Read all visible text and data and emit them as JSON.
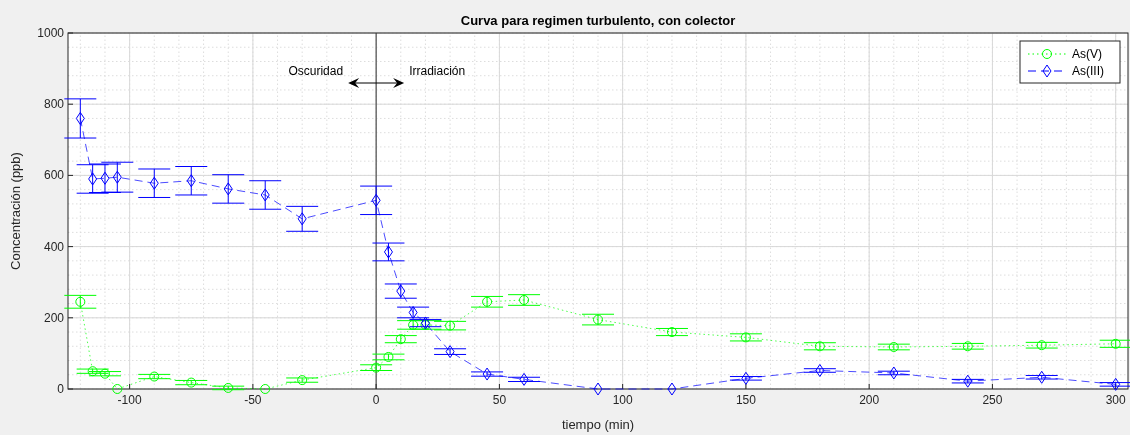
{
  "chart_data": {
    "type": "line",
    "title": "Curva para regimen turbulento, con colector",
    "xlabel": "tiempo (min)",
    "ylabel": "Concentración (ppb)",
    "x": [
      -120,
      -115,
      -110,
      -105,
      -90,
      -75,
      -60,
      -45,
      -30,
      0,
      5,
      10,
      15,
      20,
      30,
      45,
      60,
      90,
      120,
      150,
      180,
      210,
      240,
      270,
      300
    ],
    "series": [
      {
        "name": "As(V)",
        "color": "#00ff00",
        "marker": "circle",
        "line_style": "dotted",
        "values": [
          245,
          50,
          43,
          0,
          35,
          18,
          3,
          0,
          25,
          60,
          90,
          140,
          180,
          180,
          178,
          245,
          250,
          195,
          160,
          145,
          120,
          118,
          120,
          123,
          127
        ],
        "errors": [
          18,
          6,
          6,
          null,
          6,
          6,
          5,
          null,
          6,
          8,
          8,
          10,
          12,
          12,
          12,
          15,
          15,
          15,
          10,
          10,
          10,
          8,
          8,
          8,
          10
        ]
      },
      {
        "name": "As(III)",
        "color": "#0000ff",
        "marker": "diamond",
        "line_style": "dashed",
        "values": [
          760,
          590,
          592,
          595,
          578,
          585,
          562,
          545,
          478,
          530,
          385,
          275,
          215,
          185,
          105,
          42,
          27,
          0,
          0,
          30,
          52,
          45,
          22,
          33,
          13
        ],
        "errors": [
          55,
          40,
          40,
          42,
          40,
          40,
          40,
          40,
          35,
          40,
          25,
          20,
          15,
          10,
          8,
          6,
          6,
          null,
          null,
          5,
          5,
          5,
          5,
          5,
          5
        ]
      }
    ],
    "xlim": [
      -125,
      305
    ],
    "xticks": [
      -100,
      -50,
      0,
      50,
      100,
      150,
      200,
      250,
      300
    ],
    "ylim": [
      0,
      1000
    ],
    "yticks": [
      0,
      200,
      400,
      600,
      800,
      1000
    ],
    "grid": true,
    "legend": "top right",
    "ref_lines": [
      {
        "axis": "x",
        "value": 0,
        "color": "#333333"
      }
    ],
    "annotations": [
      "Oscuridad",
      "Irradiación"
    ]
  }
}
